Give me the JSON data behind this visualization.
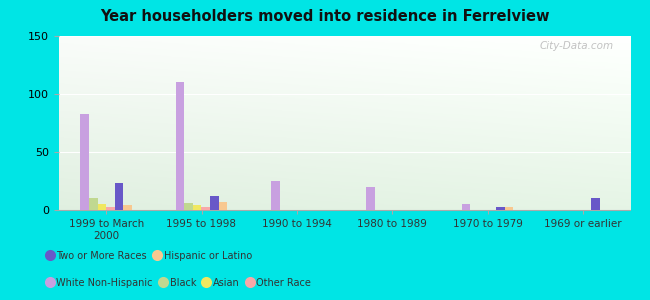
{
  "title": "Year householders moved into residence in Ferrelview",
  "categories": [
    "1999 to March\n2000",
    "1995 to 1998",
    "1990 to 1994",
    "1980 to 1989",
    "1970 to 1979",
    "1969 or earlier"
  ],
  "series_order": [
    "White Non-Hispanic",
    "Black",
    "Asian",
    "Other Race",
    "Two or More Races",
    "Hispanic or Latino"
  ],
  "series": {
    "White Non-Hispanic": [
      83,
      110,
      25,
      20,
      5,
      0
    ],
    "Black": [
      10,
      6,
      0,
      0,
      0,
      0
    ],
    "Asian": [
      5,
      4,
      0,
      0,
      0,
      0
    ],
    "Other Race": [
      3,
      3,
      0,
      0,
      0,
      0
    ],
    "Two or More Races": [
      23,
      12,
      0,
      0,
      3,
      10
    ],
    "Hispanic or Latino": [
      4,
      7,
      0,
      0,
      3,
      0
    ]
  },
  "colors": {
    "White Non-Hispanic": "#c8a0e0",
    "Black": "#c0d890",
    "Asian": "#f0e860",
    "Other Race": "#f8a8a8",
    "Two or More Races": "#6858c8",
    "Hispanic or Latino": "#f8c890"
  },
  "ylim": [
    0,
    150
  ],
  "yticks": [
    0,
    50,
    100,
    150
  ],
  "outer_bg": "#00e5e5",
  "plot_bg_color": "#e8f5e8",
  "watermark": "City-Data.com",
  "legend_row1": [
    "White Non-Hispanic",
    "Black",
    "Asian",
    "Other Race"
  ],
  "legend_row2": [
    "Two or More Races",
    "Hispanic or Latino"
  ]
}
